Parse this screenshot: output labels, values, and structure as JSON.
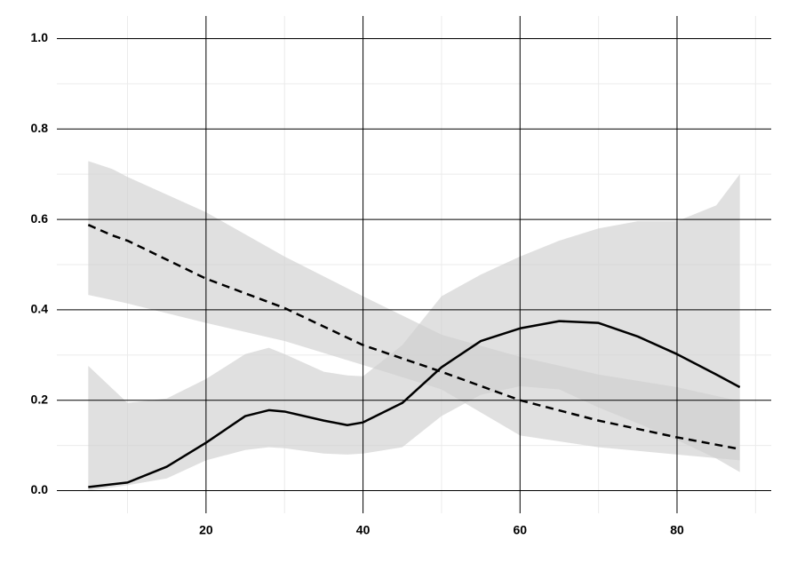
{
  "chart_data": {
    "type": "line",
    "xlim": [
      1,
      92
    ],
    "ylim": [
      -0.05,
      1.05
    ],
    "xticks": [
      20,
      40,
      60,
      80
    ],
    "yticks": [
      {
        "value": 0,
        "label": "0.0"
      },
      {
        "value": 0.2,
        "label": "0.2"
      },
      {
        "value": 0.4,
        "label": "0.4"
      },
      {
        "value": 0.6,
        "label": "0.6"
      },
      {
        "value": 0.8,
        "label": "0.8"
      },
      {
        "value": 1,
        "label": "1.0"
      }
    ],
    "grid": true,
    "minor_grid": true,
    "series": [
      {
        "color": "#000000",
        "dashed": false,
        "band_color": "#cfcfcf",
        "x": [
          5,
          10,
          15,
          20,
          25,
          28,
          30,
          35,
          38,
          40,
          45,
          50,
          55,
          60,
          65,
          70,
          75,
          80,
          85,
          88
        ],
        "values": [
          0.008,
          0.018,
          0.053,
          0.106,
          0.165,
          0.178,
          0.175,
          0.155,
          0.145,
          0.151,
          0.194,
          0.273,
          0.331,
          0.359,
          0.375,
          0.371,
          0.341,
          0.302,
          0.257,
          0.229
        ],
        "upper": [
          0.276,
          0.194,
          0.204,
          0.247,
          0.302,
          0.316,
          0.302,
          0.263,
          0.255,
          0.253,
          0.322,
          0.43,
          0.478,
          0.518,
          0.553,
          0.58,
          0.596,
          0.596,
          0.631,
          0.7
        ],
        "lower": [
          0.0,
          0.012,
          0.027,
          0.067,
          0.09,
          0.096,
          0.094,
          0.082,
          0.08,
          0.082,
          0.096,
          0.165,
          0.212,
          0.231,
          0.224,
          0.184,
          0.149,
          0.112,
          0.071,
          0.041
        ]
      },
      {
        "color": "#000000",
        "dashed": true,
        "band_color": "#cfcfcf",
        "x": [
          5,
          8,
          10,
          20,
          30,
          40,
          50,
          60,
          70,
          80,
          88
        ],
        "values": [
          0.588,
          0.565,
          0.553,
          0.469,
          0.404,
          0.322,
          0.263,
          0.2,
          0.155,
          0.118,
          0.092
        ],
        "upper": [
          0.729,
          0.712,
          0.694,
          0.616,
          0.518,
          0.43,
          0.345,
          0.296,
          0.257,
          0.229,
          0.198
        ],
        "lower": [
          0.433,
          0.422,
          0.414,
          0.371,
          0.331,
          0.278,
          0.224,
          0.122,
          0.096,
          0.08,
          0.067
        ]
      }
    ]
  }
}
